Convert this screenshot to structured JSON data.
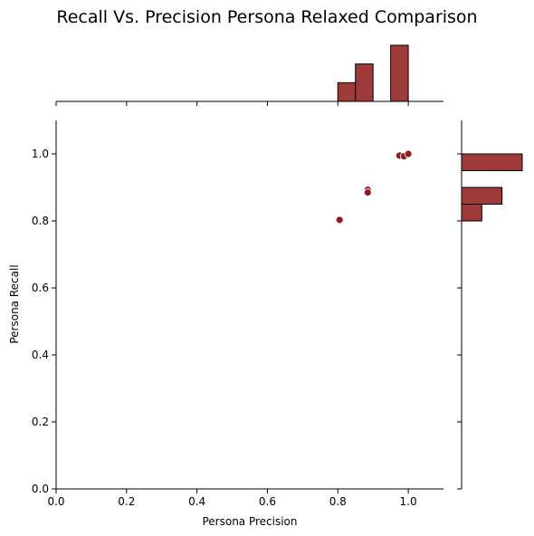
{
  "chart_data": {
    "type": "scatter",
    "title": "Recall Vs. Precision Persona Relaxed Comparison",
    "xlabel": "Persona Precision",
    "ylabel": "Persona Recall",
    "xlim": [
      0,
      1.1
    ],
    "ylim": [
      0,
      1.1
    ],
    "xticks": [
      "0.0",
      "0.2",
      "0.4",
      "0.6",
      "0.8",
      "1.0"
    ],
    "yticks": [
      "0.0",
      "0.2",
      "0.4",
      "0.6",
      "0.8",
      "1.0"
    ],
    "points": [
      {
        "x": 0.805,
        "y": 0.803
      },
      {
        "x": 0.885,
        "y": 0.893
      },
      {
        "x": 0.885,
        "y": 0.885
      },
      {
        "x": 0.975,
        "y": 0.995
      },
      {
        "x": 0.988,
        "y": 0.993
      },
      {
        "x": 1.0,
        "y": 1.0
      }
    ],
    "marginal_x_hist": {
      "bins": [
        [
          0.8,
          0.85
        ],
        [
          0.85,
          0.9
        ],
        [
          0.9,
          0.95
        ],
        [
          0.95,
          1.0
        ]
      ],
      "counts": [
        1,
        2,
        0,
        3
      ]
    },
    "marginal_y_hist": {
      "bins": [
        [
          0.8,
          0.85
        ],
        [
          0.85,
          0.9
        ],
        [
          0.9,
          0.95
        ],
        [
          0.95,
          1.0
        ]
      ],
      "counts": [
        1,
        2,
        0,
        3
      ]
    },
    "colors": {
      "point": "#8e1f1f",
      "bar": "#9e3a3a",
      "bar_edge": "#000000"
    },
    "grid": false
  }
}
